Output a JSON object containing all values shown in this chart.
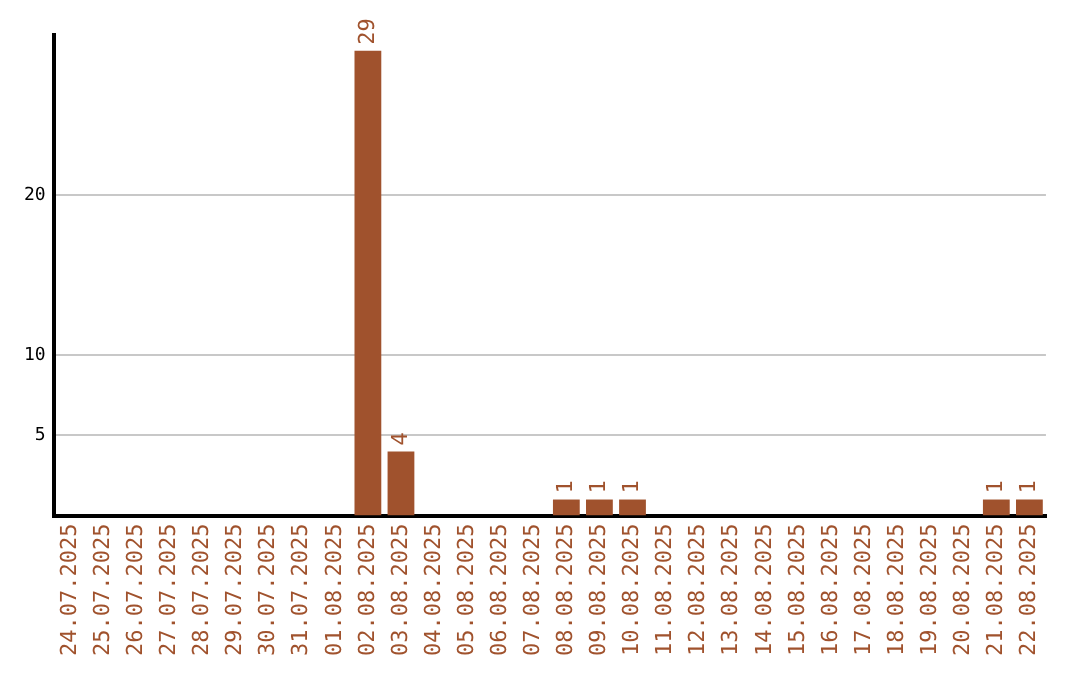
{
  "chart_data": {
    "type": "bar",
    "categories": [
      "24.07.2025",
      "25.07.2025",
      "26.07.2025",
      "27.07.2025",
      "28.07.2025",
      "29.07.2025",
      "30.07.2025",
      "31.07.2025",
      "01.08.2025",
      "02.08.2025",
      "03.08.2025",
      "04.08.2025",
      "05.08.2025",
      "06.08.2025",
      "07.08.2025",
      "08.08.2025",
      "09.08.2025",
      "10.08.2025",
      "11.08.2025",
      "12.08.2025",
      "13.08.2025",
      "14.08.2025",
      "15.08.2025",
      "16.08.2025",
      "17.08.2025",
      "18.08.2025",
      "19.08.2025",
      "20.08.2025",
      "21.08.2025",
      "22.08.2025"
    ],
    "values": [
      0,
      0,
      0,
      0,
      0,
      0,
      0,
      0,
      0,
      29,
      4,
      0,
      0,
      0,
      0,
      1,
      1,
      1,
      0,
      0,
      0,
      0,
      0,
      0,
      0,
      0,
      0,
      0,
      1,
      1
    ],
    "value_labels": [
      null,
      null,
      null,
      null,
      null,
      null,
      null,
      null,
      null,
      "29",
      "4",
      null,
      null,
      null,
      null,
      "1",
      "1",
      "1",
      null,
      null,
      null,
      null,
      null,
      null,
      null,
      null,
      null,
      null,
      "1",
      "1"
    ],
    "color": "#a0522d",
    "ylim": [
      0,
      30
    ],
    "yticks": [
      5,
      10,
      20
    ],
    "grid": "y",
    "legend": false
  }
}
